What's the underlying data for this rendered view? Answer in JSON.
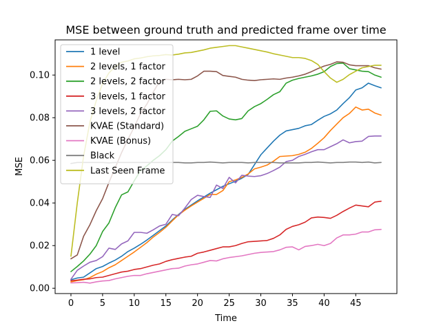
{
  "chart_data": {
    "type": "line",
    "title": "MSE between ground truth and predicted frame over time",
    "xlabel": "Time",
    "ylabel": "MSE",
    "xlim": [
      -2.5,
      51.5
    ],
    "ylim": [
      -0.0025,
      0.1165
    ],
    "xticks": [
      0,
      5,
      10,
      15,
      20,
      25,
      30,
      35,
      40,
      45
    ],
    "xtick_labels": [
      "0",
      "5",
      "10",
      "15",
      "20",
      "25",
      "30",
      "35",
      "40",
      "45"
    ],
    "yticks": [
      0.0,
      0.02,
      0.04,
      0.06,
      0.08,
      0.1
    ],
    "ytick_labels": [
      "0.00",
      "0.02",
      "0.04",
      "0.06",
      "0.08",
      "0.10"
    ],
    "legend_position": "upper-left",
    "grid": false,
    "x": [
      0,
      1,
      2,
      3,
      4,
      5,
      6,
      7,
      8,
      9,
      10,
      11,
      12,
      13,
      14,
      15,
      16,
      17,
      18,
      19,
      20,
      21,
      22,
      23,
      24,
      25,
      26,
      27,
      28,
      29,
      30,
      31,
      32,
      33,
      34,
      35,
      36,
      37,
      38,
      39,
      40,
      41,
      42,
      43,
      44,
      45,
      46,
      47,
      48,
      49
    ],
    "series": [
      {
        "name": "1 level",
        "color": "#1f77b4",
        "values": [
          0.004,
          0.0048,
          0.0052,
          0.0072,
          0.0092,
          0.0102,
          0.0118,
          0.0132,
          0.015,
          0.0172,
          0.0188,
          0.0206,
          0.0226,
          0.0248,
          0.027,
          0.0292,
          0.032,
          0.0346,
          0.037,
          0.039,
          0.041,
          0.0428,
          0.0446,
          0.0462,
          0.0478,
          0.049,
          0.0502,
          0.0516,
          0.0534,
          0.058,
          0.0626,
          0.0658,
          0.069,
          0.0718,
          0.0738,
          0.0744,
          0.075,
          0.0762,
          0.0768,
          0.0788,
          0.0806,
          0.0818,
          0.0836,
          0.0866,
          0.0894,
          0.093,
          0.094,
          0.0962,
          0.095,
          0.094
        ]
      },
      {
        "name": "2 levels, 1 factor",
        "color": "#ff7f0e",
        "values": [
          0.003,
          0.0036,
          0.004,
          0.005,
          0.0066,
          0.0078,
          0.0096,
          0.011,
          0.013,
          0.015,
          0.017,
          0.0192,
          0.0214,
          0.024,
          0.0262,
          0.0286,
          0.0316,
          0.0344,
          0.0366,
          0.0386,
          0.0404,
          0.0422,
          0.044,
          0.044,
          0.0458,
          0.05,
          0.0508,
          0.052,
          0.0536,
          0.056,
          0.0568,
          0.0578,
          0.0596,
          0.0618,
          0.062,
          0.0622,
          0.0628,
          0.0638,
          0.0656,
          0.068,
          0.0706,
          0.074,
          0.077,
          0.08,
          0.082,
          0.085,
          0.0836,
          0.084,
          0.0822,
          0.0812
        ]
      },
      {
        "name": "2 levels, 2 factor",
        "color": "#2ca02c",
        "values": [
          0.0078,
          0.0102,
          0.0128,
          0.016,
          0.02,
          0.0266,
          0.0306,
          0.0378,
          0.0438,
          0.0452,
          0.0504,
          0.0552,
          0.0574,
          0.06,
          0.0622,
          0.065,
          0.069,
          0.0712,
          0.0736,
          0.0748,
          0.076,
          0.079,
          0.083,
          0.0832,
          0.0808,
          0.0794,
          0.079,
          0.0796,
          0.0832,
          0.0852,
          0.0866,
          0.0886,
          0.0908,
          0.0922,
          0.0962,
          0.0976,
          0.0984,
          0.099,
          0.0996,
          0.1004,
          0.1016,
          0.104,
          0.1054,
          0.1056,
          0.103,
          0.1024,
          0.1018,
          0.1016,
          0.1,
          0.099
        ]
      },
      {
        "name": "3 levels, 1 factor",
        "color": "#d62728",
        "values": [
          0.0035,
          0.0038,
          0.0042,
          0.0044,
          0.005,
          0.0052,
          0.006,
          0.0068,
          0.0076,
          0.008,
          0.0088,
          0.0092,
          0.01,
          0.0108,
          0.0114,
          0.0126,
          0.0134,
          0.014,
          0.0146,
          0.015,
          0.0164,
          0.017,
          0.0178,
          0.0186,
          0.0194,
          0.0194,
          0.02,
          0.021,
          0.0218,
          0.022,
          0.0222,
          0.0224,
          0.0234,
          0.025,
          0.0276,
          0.029,
          0.0298,
          0.031,
          0.033,
          0.0334,
          0.0332,
          0.0328,
          0.0342,
          0.036,
          0.0376,
          0.039,
          0.0386,
          0.0382,
          0.0404,
          0.0408
        ]
      },
      {
        "name": "3 levels, 2 factor",
        "color": "#9467bd",
        "values": [
          0.0042,
          0.0084,
          0.0104,
          0.0122,
          0.013,
          0.0148,
          0.0188,
          0.0182,
          0.0208,
          0.0222,
          0.0262,
          0.0262,
          0.0258,
          0.0274,
          0.0292,
          0.03,
          0.0346,
          0.034,
          0.0376,
          0.0416,
          0.0436,
          0.043,
          0.0426,
          0.0484,
          0.0468,
          0.052,
          0.0494,
          0.053,
          0.0526,
          0.0524,
          0.0528,
          0.0538,
          0.0552,
          0.0568,
          0.0594,
          0.06,
          0.0618,
          0.0628,
          0.064,
          0.065,
          0.065,
          0.0664,
          0.0678,
          0.0696,
          0.0682,
          0.0688,
          0.069,
          0.0712,
          0.0714,
          0.0714
        ]
      },
      {
        "name": "KVAE (Standard)",
        "color": "#8c564b",
        "values": [
          0.0138,
          0.0156,
          0.0244,
          0.0298,
          0.0364,
          0.042,
          0.0496,
          0.0566,
          0.0636,
          0.0698,
          0.0756,
          0.082,
          0.0864,
          0.092,
          0.097,
          0.098,
          0.0978,
          0.098,
          0.0978,
          0.098,
          0.0996,
          0.1018,
          0.1018,
          0.1016,
          0.0998,
          0.0994,
          0.099,
          0.098,
          0.0976,
          0.0974,
          0.0978,
          0.098,
          0.0982,
          0.098,
          0.0986,
          0.099,
          0.0996,
          0.1004,
          0.1016,
          0.103,
          0.1042,
          0.105,
          0.1062,
          0.106,
          0.1048,
          0.1044,
          0.1044,
          0.1044,
          0.1034,
          0.1028
        ]
      },
      {
        "name": "KVAE (Bonus)",
        "color": "#e377c2",
        "values": [
          0.0025,
          0.0026,
          0.0028,
          0.0024,
          0.003,
          0.0034,
          0.0036,
          0.0044,
          0.005,
          0.0056,
          0.006,
          0.006,
          0.0068,
          0.0074,
          0.008,
          0.0086,
          0.0092,
          0.0094,
          0.0104,
          0.011,
          0.0114,
          0.0122,
          0.013,
          0.0128,
          0.0138,
          0.0144,
          0.0148,
          0.0152,
          0.0158,
          0.0164,
          0.0168,
          0.017,
          0.0172,
          0.018,
          0.0192,
          0.0194,
          0.018,
          0.0196,
          0.02,
          0.0206,
          0.02,
          0.021,
          0.0236,
          0.025,
          0.025,
          0.0254,
          0.0264,
          0.0264,
          0.0274,
          0.0276
        ]
      },
      {
        "name": "Black",
        "color": "#7f7f7f",
        "values": [
          0.0585,
          0.059,
          0.059,
          0.059,
          0.059,
          0.059,
          0.0588,
          0.059,
          0.059,
          0.059,
          0.059,
          0.059,
          0.059,
          0.059,
          0.059,
          0.059,
          0.059,
          0.059,
          0.0588,
          0.0588,
          0.059,
          0.059,
          0.0592,
          0.059,
          0.0588,
          0.059,
          0.059,
          0.059,
          0.0588,
          0.059,
          0.059,
          0.059,
          0.059,
          0.0588,
          0.0588,
          0.0588,
          0.0588,
          0.059,
          0.059,
          0.0592,
          0.059,
          0.0588,
          0.059,
          0.059,
          0.0592,
          0.0592,
          0.059,
          0.0592,
          0.0588,
          0.059
        ]
      },
      {
        "name": "Last Seen Frame",
        "color": "#bcbd22",
        "values": [
          0.015,
          0.04,
          0.062,
          0.078,
          0.088,
          0.096,
          0.101,
          0.104,
          0.106,
          0.1066,
          0.1076,
          0.108,
          0.1086,
          0.109,
          0.1092,
          0.1096,
          0.1094,
          0.1098,
          0.1104,
          0.1106,
          0.1112,
          0.1118,
          0.1126,
          0.113,
          0.1134,
          0.1138,
          0.1138,
          0.1132,
          0.1126,
          0.112,
          0.1114,
          0.1108,
          0.11,
          0.1094,
          0.1088,
          0.1082,
          0.1082,
          0.1078,
          0.1068,
          0.105,
          0.1016,
          0.0986,
          0.0966,
          0.098,
          0.1002,
          0.1018,
          0.1034,
          0.104,
          0.1046,
          0.1046
        ]
      }
    ]
  }
}
